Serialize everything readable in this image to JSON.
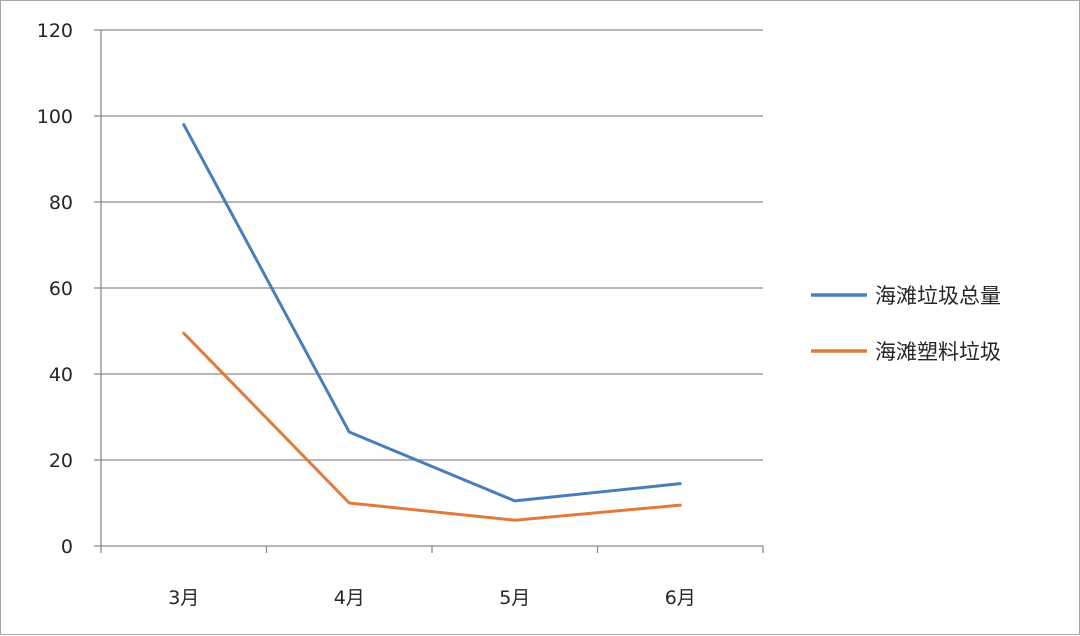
{
  "chart_data": {
    "type": "line",
    "categories": [
      "3月",
      "4月",
      "5月",
      "6月"
    ],
    "series": [
      {
        "name": "海滩垃圾总量",
        "values": [
          98,
          26.5,
          10.5,
          14.5
        ],
        "color": "#4a7ebb"
      },
      {
        "name": "海滩塑料垃圾",
        "values": [
          49.5,
          10,
          6,
          9.5
        ],
        "color": "#e07b39"
      }
    ],
    "ylim": [
      0,
      120
    ],
    "yticks": [
      "0",
      "20",
      "40",
      "60",
      "80",
      "100",
      "120"
    ],
    "grid": true,
    "legend_position": "right"
  }
}
